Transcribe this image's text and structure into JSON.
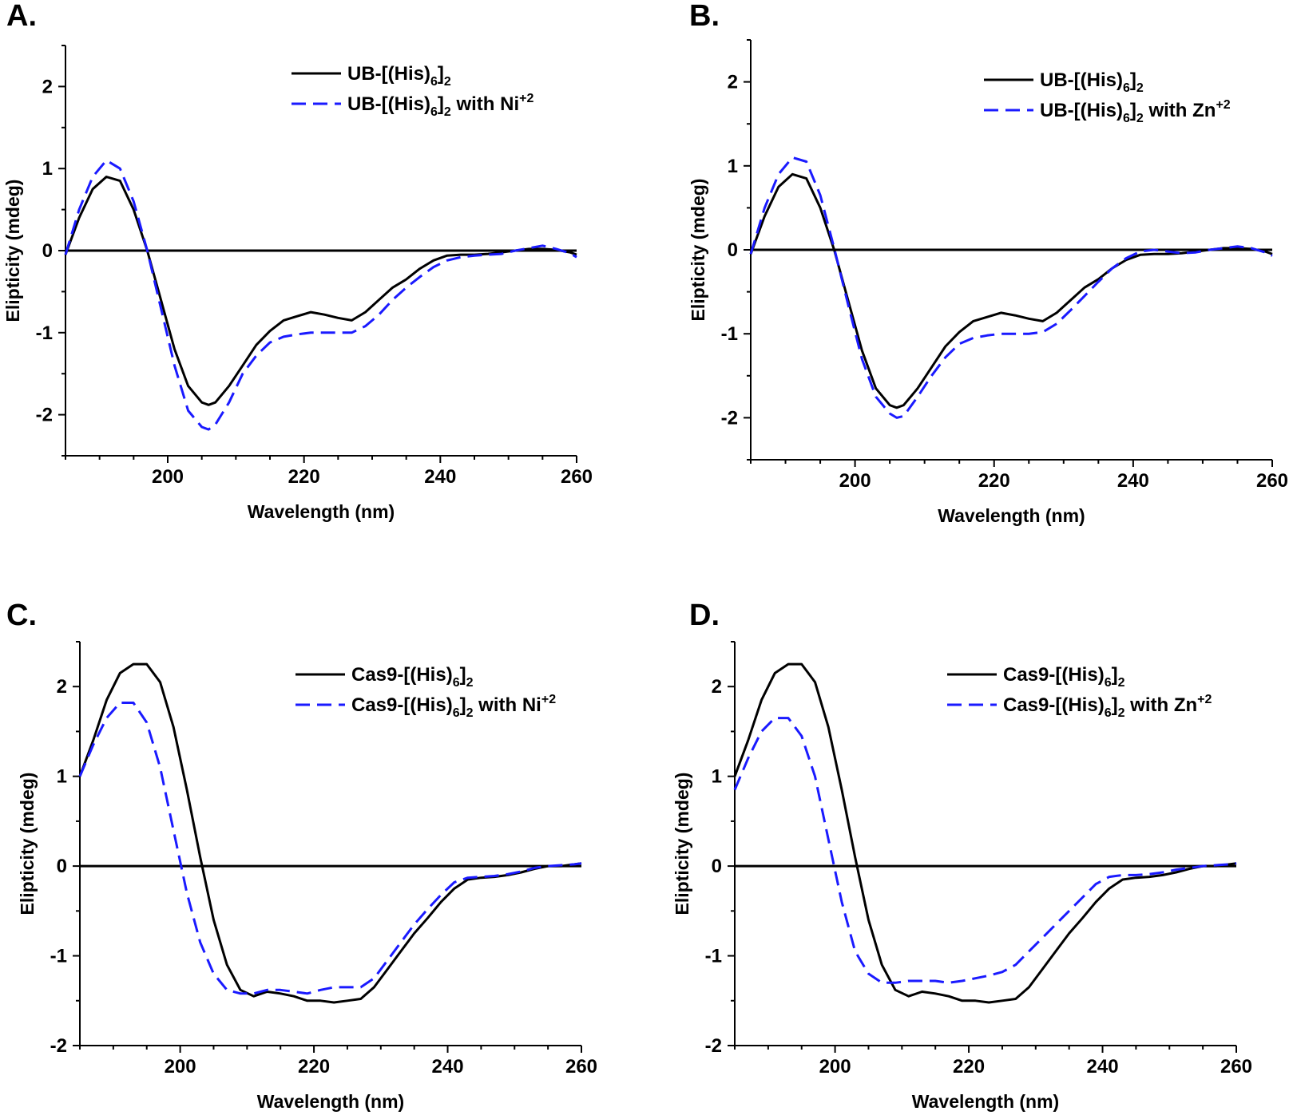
{
  "chart_data": [
    {
      "panel": "A.",
      "type": "line",
      "xlabel": "Wavelength (nm)",
      "ylabel": "Elipticity (mdeg)",
      "xlim": [
        185,
        260
      ],
      "ylim": [
        -2.5,
        2.5
      ],
      "xticks": [
        200,
        220,
        240,
        260
      ],
      "yticks": [
        -2,
        -1,
        0,
        1,
        2
      ],
      "legend_position": "top-right",
      "legend": [
        {
          "base": "UB-[(His)",
          "sub": "6",
          "mid": "]",
          "sub2": "2",
          "suffix": "",
          "sup": ""
        },
        {
          "base": "UB-[(His)",
          "sub": "6",
          "mid": "]",
          "sub2": "2",
          "suffix": " with Ni",
          "sup": "+2"
        }
      ],
      "series": [
        {
          "name": "UB-[(His)6]2",
          "color": "#000000",
          "dash": "solid",
          "x": [
            185,
            187,
            189,
            191,
            193,
            195,
            197,
            199,
            201,
            203,
            205,
            206,
            207,
            209,
            211,
            213,
            215,
            217,
            219,
            221,
            223,
            225,
            227,
            229,
            231,
            233,
            235,
            237,
            239,
            241,
            243,
            245,
            247,
            249,
            251,
            253,
            255,
            257,
            259,
            260
          ],
          "y": [
            -0.05,
            0.4,
            0.75,
            0.9,
            0.85,
            0.5,
            0.0,
            -0.6,
            -1.2,
            -1.65,
            -1.85,
            -1.88,
            -1.85,
            -1.65,
            -1.4,
            -1.15,
            -0.98,
            -0.85,
            -0.8,
            -0.75,
            -0.78,
            -0.82,
            -0.85,
            -0.75,
            -0.6,
            -0.45,
            -0.35,
            -0.22,
            -0.12,
            -0.06,
            -0.05,
            -0.05,
            -0.04,
            -0.02,
            0.0,
            0.02,
            0.02,
            0.01,
            -0.02,
            -0.05
          ]
        },
        {
          "name": "UB-[(His)6]2 with Ni+2",
          "color": "#1a1aff",
          "dash": "dashed",
          "x": [
            185,
            187,
            189,
            191,
            193,
            195,
            197,
            199,
            201,
            203,
            205,
            206,
            207,
            209,
            211,
            213,
            215,
            217,
            219,
            221,
            223,
            225,
            227,
            229,
            231,
            233,
            235,
            237,
            239,
            241,
            243,
            245,
            247,
            249,
            251,
            253,
            255,
            257,
            259,
            260
          ],
          "y": [
            -0.05,
            0.5,
            0.9,
            1.1,
            1.0,
            0.6,
            0.0,
            -0.7,
            -1.4,
            -1.95,
            -2.15,
            -2.18,
            -2.12,
            -1.85,
            -1.5,
            -1.28,
            -1.12,
            -1.05,
            -1.02,
            -1.0,
            -1.0,
            -1.0,
            -1.0,
            -0.92,
            -0.78,
            -0.6,
            -0.45,
            -0.32,
            -0.2,
            -0.12,
            -0.08,
            -0.06,
            -0.05,
            -0.04,
            0.0,
            0.03,
            0.06,
            0.02,
            -0.03,
            -0.08
          ]
        }
      ]
    },
    {
      "panel": "B.",
      "type": "line",
      "xlabel": "Wavelength (nm)",
      "ylabel": "Elipticity (mdeg)",
      "xlim": [
        185,
        260
      ],
      "ylim": [
        -2.5,
        2.5
      ],
      "xticks": [
        200,
        220,
        240,
        260
      ],
      "yticks": [
        -2,
        -1,
        0,
        1,
        2
      ],
      "legend_position": "top-right",
      "legend": [
        {
          "base": "UB-[(His)",
          "sub": "6",
          "mid": "]",
          "sub2": "2",
          "suffix": "",
          "sup": ""
        },
        {
          "base": "UB-[(His)",
          "sub": "6",
          "mid": "]",
          "sub2": "2",
          "suffix": " with Zn",
          "sup": "+2"
        }
      ],
      "series": [
        {
          "name": "UB-[(His)6]2",
          "color": "#000000",
          "dash": "solid",
          "x": [
            185,
            187,
            189,
            191,
            193,
            195,
            197,
            199,
            201,
            203,
            205,
            206,
            207,
            209,
            211,
            213,
            215,
            217,
            219,
            221,
            223,
            225,
            227,
            229,
            231,
            233,
            235,
            237,
            239,
            241,
            243,
            245,
            247,
            249,
            251,
            253,
            255,
            257,
            259,
            260
          ],
          "y": [
            -0.05,
            0.4,
            0.75,
            0.9,
            0.85,
            0.5,
            0.0,
            -0.6,
            -1.2,
            -1.65,
            -1.85,
            -1.88,
            -1.85,
            -1.65,
            -1.4,
            -1.15,
            -0.98,
            -0.85,
            -0.8,
            -0.75,
            -0.78,
            -0.82,
            -0.85,
            -0.75,
            -0.6,
            -0.45,
            -0.35,
            -0.22,
            -0.12,
            -0.06,
            -0.05,
            -0.05,
            -0.04,
            -0.02,
            0.0,
            0.02,
            0.02,
            0.01,
            -0.02,
            -0.05
          ]
        },
        {
          "name": "UB-[(His)6]2 with Zn+2",
          "color": "#1a1aff",
          "dash": "dashed",
          "x": [
            185,
            187,
            189,
            191,
            193,
            195,
            197,
            199,
            201,
            203,
            205,
            206,
            207,
            209,
            211,
            213,
            215,
            217,
            219,
            221,
            223,
            225,
            227,
            229,
            231,
            233,
            235,
            237,
            239,
            241,
            243,
            245,
            247,
            249,
            251,
            253,
            255,
            257,
            259,
            260
          ],
          "y": [
            -0.05,
            0.5,
            0.9,
            1.1,
            1.05,
            0.65,
            0.02,
            -0.65,
            -1.3,
            -1.75,
            -1.95,
            -2.0,
            -1.98,
            -1.75,
            -1.5,
            -1.28,
            -1.12,
            -1.05,
            -1.02,
            -1.0,
            -1.0,
            -1.0,
            -0.98,
            -0.88,
            -0.72,
            -0.55,
            -0.38,
            -0.22,
            -0.1,
            -0.02,
            0.0,
            -0.02,
            -0.04,
            -0.03,
            0.0,
            0.02,
            0.04,
            0.02,
            -0.03,
            -0.07
          ]
        }
      ]
    },
    {
      "panel": "C.",
      "type": "line",
      "xlabel": "Wavelength (nm)",
      "ylabel": "Elipticity (mdeg)",
      "xlim": [
        185,
        260
      ],
      "ylim": [
        -2,
        2.5
      ],
      "xticks": [
        200,
        220,
        240,
        260
      ],
      "yticks": [
        -2,
        -1,
        0,
        1,
        2
      ],
      "legend_position": "top-right",
      "legend": [
        {
          "base": "Cas9-[(His)",
          "sub": "6",
          "mid": "]",
          "sub2": "2",
          "suffix": "",
          "sup": ""
        },
        {
          "base": "Cas9-[(His)",
          "sub": "6",
          "mid": "]",
          "sub2": "2",
          "suffix": " with Ni",
          "sup": "+2"
        }
      ],
      "series": [
        {
          "name": "Cas9-[(His)6]2",
          "color": "#000000",
          "dash": "solid",
          "x": [
            185,
            187,
            189,
            191,
            193,
            195,
            197,
            199,
            201,
            203,
            205,
            207,
            209,
            211,
            213,
            215,
            217,
            219,
            221,
            223,
            225,
            227,
            229,
            231,
            233,
            235,
            237,
            239,
            241,
            243,
            245,
            247,
            249,
            251,
            253,
            255,
            257,
            259,
            260
          ],
          "y": [
            1.0,
            1.4,
            1.85,
            2.15,
            2.25,
            2.25,
            2.05,
            1.55,
            0.85,
            0.1,
            -0.6,
            -1.1,
            -1.38,
            -1.45,
            -1.4,
            -1.42,
            -1.45,
            -1.5,
            -1.5,
            -1.52,
            -1.5,
            -1.48,
            -1.35,
            -1.15,
            -0.95,
            -0.75,
            -0.58,
            -0.4,
            -0.25,
            -0.15,
            -0.13,
            -0.12,
            -0.1,
            -0.07,
            -0.03,
            0.0,
            0.0,
            0.02,
            0.03
          ]
        },
        {
          "name": "Cas9-[(His)6]2 with Ni+2",
          "color": "#1a1aff",
          "dash": "dashed",
          "x": [
            185,
            187,
            189,
            191,
            193,
            195,
            197,
            199,
            201,
            203,
            205,
            207,
            209,
            211,
            213,
            215,
            217,
            219,
            221,
            223,
            225,
            227,
            229,
            231,
            233,
            235,
            237,
            239,
            241,
            243,
            245,
            247,
            249,
            251,
            253,
            255,
            257,
            259,
            260
          ],
          "y": [
            1.0,
            1.35,
            1.65,
            1.82,
            1.82,
            1.6,
            1.1,
            0.4,
            -0.3,
            -0.85,
            -1.2,
            -1.38,
            -1.42,
            -1.42,
            -1.38,
            -1.38,
            -1.4,
            -1.42,
            -1.38,
            -1.35,
            -1.35,
            -1.35,
            -1.25,
            -1.05,
            -0.85,
            -0.65,
            -0.48,
            -0.32,
            -0.18,
            -0.13,
            -0.12,
            -0.11,
            -0.09,
            -0.06,
            -0.02,
            0.0,
            0.01,
            0.02,
            0.03
          ]
        }
      ]
    },
    {
      "panel": "D.",
      "type": "line",
      "xlabel": "Wavelength (nm)",
      "ylabel": "Elipticity (mdeg)",
      "xlim": [
        185,
        260
      ],
      "ylim": [
        -2,
        2.5
      ],
      "xticks": [
        200,
        220,
        240,
        260
      ],
      "yticks": [
        -2,
        -1,
        0,
        1,
        2
      ],
      "legend_position": "top-right",
      "legend": [
        {
          "base": "Cas9-[(His)",
          "sub": "6",
          "mid": "]",
          "sub2": "2",
          "suffix": "",
          "sup": ""
        },
        {
          "base": "Cas9-[(His)",
          "sub": "6",
          "mid": "]",
          "sub2": "2",
          "suffix": " with Zn",
          "sup": "+2"
        }
      ],
      "series": [
        {
          "name": "Cas9-[(His)6]2",
          "color": "#000000",
          "dash": "solid",
          "x": [
            185,
            187,
            189,
            191,
            193,
            195,
            197,
            199,
            201,
            203,
            205,
            207,
            209,
            211,
            213,
            215,
            217,
            219,
            221,
            223,
            225,
            227,
            229,
            231,
            233,
            235,
            237,
            239,
            241,
            243,
            245,
            247,
            249,
            251,
            253,
            255,
            257,
            259,
            260
          ],
          "y": [
            1.0,
            1.4,
            1.85,
            2.15,
            2.25,
            2.25,
            2.05,
            1.55,
            0.85,
            0.1,
            -0.6,
            -1.1,
            -1.38,
            -1.45,
            -1.4,
            -1.42,
            -1.45,
            -1.5,
            -1.5,
            -1.52,
            -1.5,
            -1.48,
            -1.35,
            -1.15,
            -0.95,
            -0.75,
            -0.58,
            -0.4,
            -0.25,
            -0.15,
            -0.13,
            -0.12,
            -0.1,
            -0.07,
            -0.03,
            0.0,
            0.0,
            0.02,
            0.03
          ]
        },
        {
          "name": "Cas9-[(His)6]2 with Zn+2",
          "color": "#1a1aff",
          "dash": "dashed",
          "x": [
            185,
            187,
            189,
            191,
            193,
            195,
            197,
            199,
            201,
            203,
            205,
            207,
            209,
            211,
            213,
            215,
            217,
            219,
            221,
            223,
            225,
            227,
            229,
            231,
            233,
            235,
            237,
            239,
            241,
            243,
            245,
            247,
            249,
            251,
            253,
            255,
            257,
            259,
            260
          ],
          "y": [
            0.85,
            1.2,
            1.5,
            1.65,
            1.65,
            1.45,
            1.0,
            0.3,
            -0.4,
            -0.95,
            -1.2,
            -1.3,
            -1.3,
            -1.28,
            -1.28,
            -1.28,
            -1.3,
            -1.28,
            -1.25,
            -1.22,
            -1.18,
            -1.1,
            -0.95,
            -0.8,
            -0.65,
            -0.5,
            -0.35,
            -0.2,
            -0.12,
            -0.1,
            -0.1,
            -0.09,
            -0.07,
            -0.04,
            -0.02,
            0.0,
            0.01,
            0.02,
            0.03
          ]
        }
      ]
    }
  ]
}
